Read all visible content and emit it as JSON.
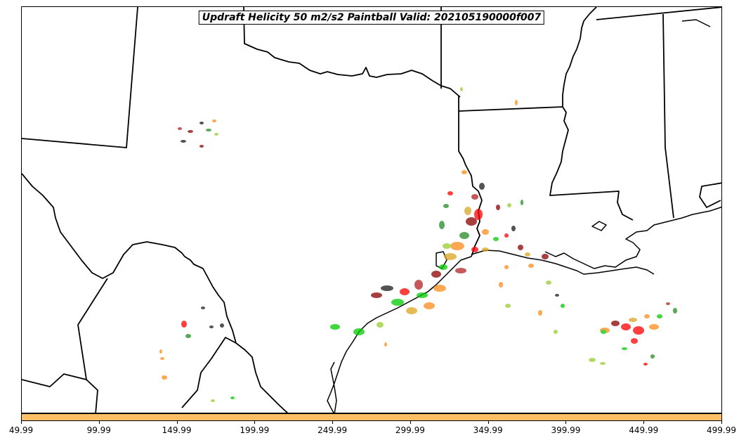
{
  "title": "Updraft Helicity 50 m2/s2 Paintball Valid: 202105190000f007",
  "colorbar": {
    "color": "#ffbf66",
    "xmin": 49.99,
    "xmax": 499.99,
    "ticks": [
      "49.99",
      "99.99",
      "149.99",
      "199.99",
      "249.99",
      "299.99",
      "349.99",
      "399.99",
      "449.99",
      "499.99"
    ]
  },
  "colors": {
    "member_colors": [
      "#ff0000",
      "#00cc00",
      "#ff8c1a",
      "#8b0000",
      "#228b22",
      "#1a1a1a",
      "#daa520",
      "#b22222",
      "#9acd32",
      "#cd5c5c"
    ]
  }
}
